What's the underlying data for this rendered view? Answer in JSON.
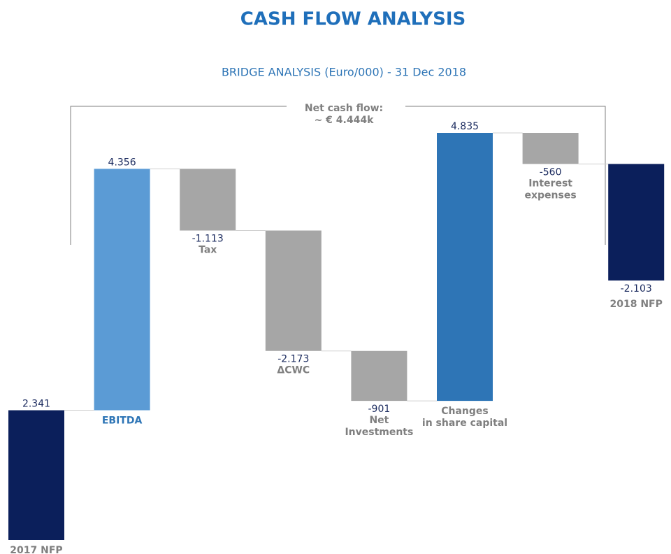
{
  "chart_data": {
    "type": "waterfall",
    "title": "CASH FLOW ANALYSIS",
    "subtitle": "BRIDGE ANALYSIS (Euro/000) - 31 Dec 2018",
    "annotation": [
      "Net cash flow:",
      "~ € 4.444k"
    ],
    "categories": [
      "2017 NFP",
      "EBITDA",
      "Tax",
      "ΔCWC",
      "Net\nInvestments",
      "Changes\nin share capital",
      "Interest\nexpenses",
      "2018 NFP"
    ],
    "measure": [
      "total",
      "relative",
      "relative",
      "relative",
      "relative",
      "relative",
      "relative",
      "relative"
    ],
    "values": [
      2341,
      4356,
      -1113,
      -2173,
      -901,
      4835,
      -560,
      -2103
    ],
    "value_labels": [
      "2.341",
      "4.356",
      "-1.113",
      "-2.173",
      "-901",
      "4.835",
      "-560",
      "-2.103"
    ],
    "colors": [
      "#0b1f5b",
      "#5b9bd5",
      "#a6a6a6",
      "#a6a6a6",
      "#a6a6a6",
      "#2e75b6",
      "#a6a6a6",
      "#0b1f5b"
    ]
  }
}
